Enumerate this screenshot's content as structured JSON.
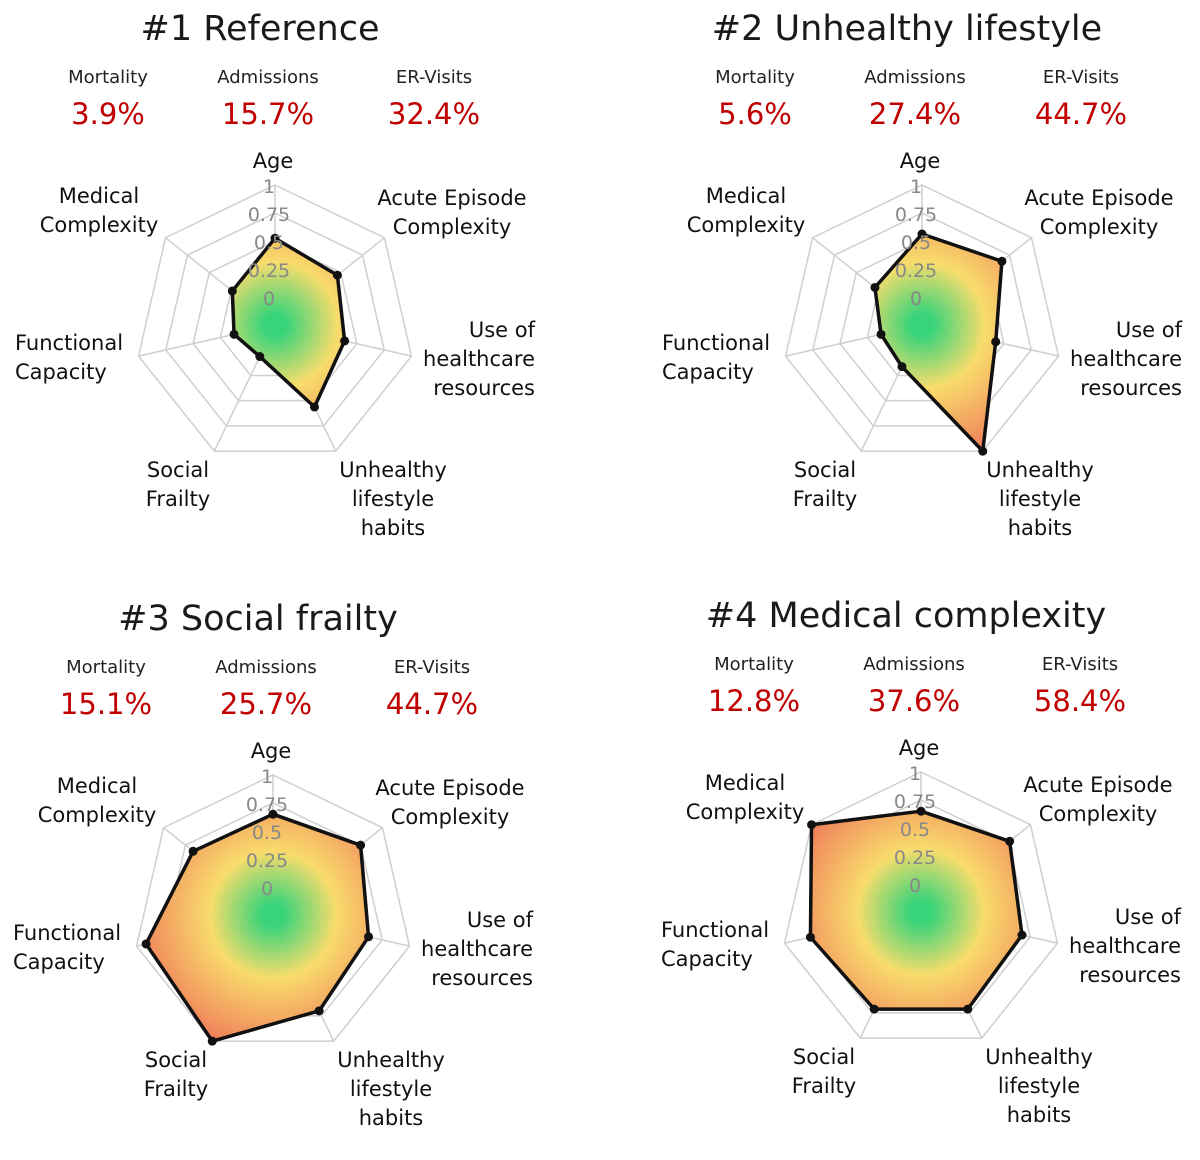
{
  "colors": {
    "metric": "#c00000",
    "outline": "#111111",
    "grid": "#cfcfcf",
    "fill_inner": "#39d47a",
    "fill_mid": "#f8dc6c",
    "fill_outer": "#f07c5a"
  },
  "chart_data": [
    {
      "type": "radar",
      "title": "#1 Reference",
      "metrics": [
        {
          "label": "Mortality",
          "value": "3.9%"
        },
        {
          "label": "Admissions",
          "value": "15.7%"
        },
        {
          "label": "ER-Visits",
          "value": "32.4%"
        }
      ],
      "axes": [
        {
          "label": [
            "Age"
          ],
          "value": 0.62
        },
        {
          "label": [
            "Acute Episode",
            "Complexity"
          ],
          "value": 0.57
        },
        {
          "label": [
            "Use of",
            "healthcare",
            "resources"
          ],
          "value": 0.51
        },
        {
          "label": [
            "Unhealthy",
            "lifestyle",
            "habits"
          ],
          "value": 0.65
        },
        {
          "label": [
            "Social",
            "Frailty"
          ],
          "value": 0.25
        },
        {
          "label": [
            "Functional",
            "Capacity"
          ],
          "value": 0.3
        },
        {
          "label": [
            "Medical",
            "Complexity"
          ],
          "value": 0.39
        }
      ],
      "r_ticks": [
        "0",
        "0.25",
        "0.5",
        "0.75",
        "1"
      ],
      "r_range": [
        0,
        1
      ]
    },
    {
      "type": "radar",
      "title": "#2 Unhealthy lifestyle",
      "metrics": [
        {
          "label": "Mortality",
          "value": "5.6%"
        },
        {
          "label": "Admissions",
          "value": "27.4%"
        },
        {
          "label": "ER-Visits",
          "value": "44.7%"
        }
      ],
      "axes": [
        {
          "label": [
            "Age"
          ],
          "value": 0.65
        },
        {
          "label": [
            "Acute Episode",
            "Complexity"
          ],
          "value": 0.73
        },
        {
          "label": [
            "Use of",
            "healthcare",
            "resources"
          ],
          "value": 0.54
        },
        {
          "label": [
            "Unhealthy",
            "lifestyle",
            "habits"
          ],
          "value": 1.0
        },
        {
          "label": [
            "Social",
            "Frailty"
          ],
          "value": 0.33
        },
        {
          "label": [
            "Functional",
            "Capacity"
          ],
          "value": 0.3
        },
        {
          "label": [
            "Medical",
            "Complexity"
          ],
          "value": 0.43
        }
      ],
      "r_ticks": [
        "0",
        "0.25",
        "0.5",
        "0.75",
        "1"
      ],
      "r_range": [
        0,
        1
      ]
    },
    {
      "type": "radar",
      "title": "#3 Social frailty",
      "metrics": [
        {
          "label": "Mortality",
          "value": "15.1%"
        },
        {
          "label": "Admissions",
          "value": "25.7%"
        },
        {
          "label": "ER-Visits",
          "value": "44.7%"
        }
      ],
      "axes": [
        {
          "label": [
            "Age"
          ],
          "value": 0.72
        },
        {
          "label": [
            "Acute Episode",
            "Complexity"
          ],
          "value": 0.8
        },
        {
          "label": [
            "Use of",
            "healthcare",
            "resources"
          ],
          "value": 0.7
        },
        {
          "label": [
            "Unhealthy",
            "lifestyle",
            "habits"
          ],
          "value": 0.76
        },
        {
          "label": [
            "Social",
            "Frailty"
          ],
          "value": 1.0
        },
        {
          "label": [
            "Functional",
            "Capacity"
          ],
          "value": 0.93
        },
        {
          "label": [
            "Medical",
            "Complexity"
          ],
          "value": 0.73
        }
      ],
      "r_ticks": [
        "0",
        "0.25",
        "0.5",
        "0.75",
        "1"
      ],
      "r_range": [
        0,
        1
      ]
    },
    {
      "type": "radar",
      "title": "#4 Medical complexity",
      "metrics": [
        {
          "label": "Mortality",
          "value": "12.8%"
        },
        {
          "label": "Admissions",
          "value": "37.6%"
        },
        {
          "label": "ER-Visits",
          "value": "58.4%"
        }
      ],
      "axes": [
        {
          "label": [
            "Age"
          ],
          "value": 0.72
        },
        {
          "label": [
            "Acute Episode",
            "Complexity"
          ],
          "value": 0.81
        },
        {
          "label": [
            "Use of",
            "healthcare",
            "resources"
          ],
          "value": 0.74
        },
        {
          "label": [
            "Unhealthy",
            "lifestyle",
            "habits"
          ],
          "value": 0.77
        },
        {
          "label": [
            "Social",
            "Frailty"
          ],
          "value": 0.77
        },
        {
          "label": [
            "Functional",
            "Capacity"
          ],
          "value": 0.81
        },
        {
          "label": [
            "Medical",
            "Complexity"
          ],
          "value": 1.0
        }
      ],
      "r_ticks": [
        "0",
        "0.25",
        "0.5",
        "0.75",
        "1"
      ],
      "r_range": [
        0,
        1
      ]
    }
  ]
}
